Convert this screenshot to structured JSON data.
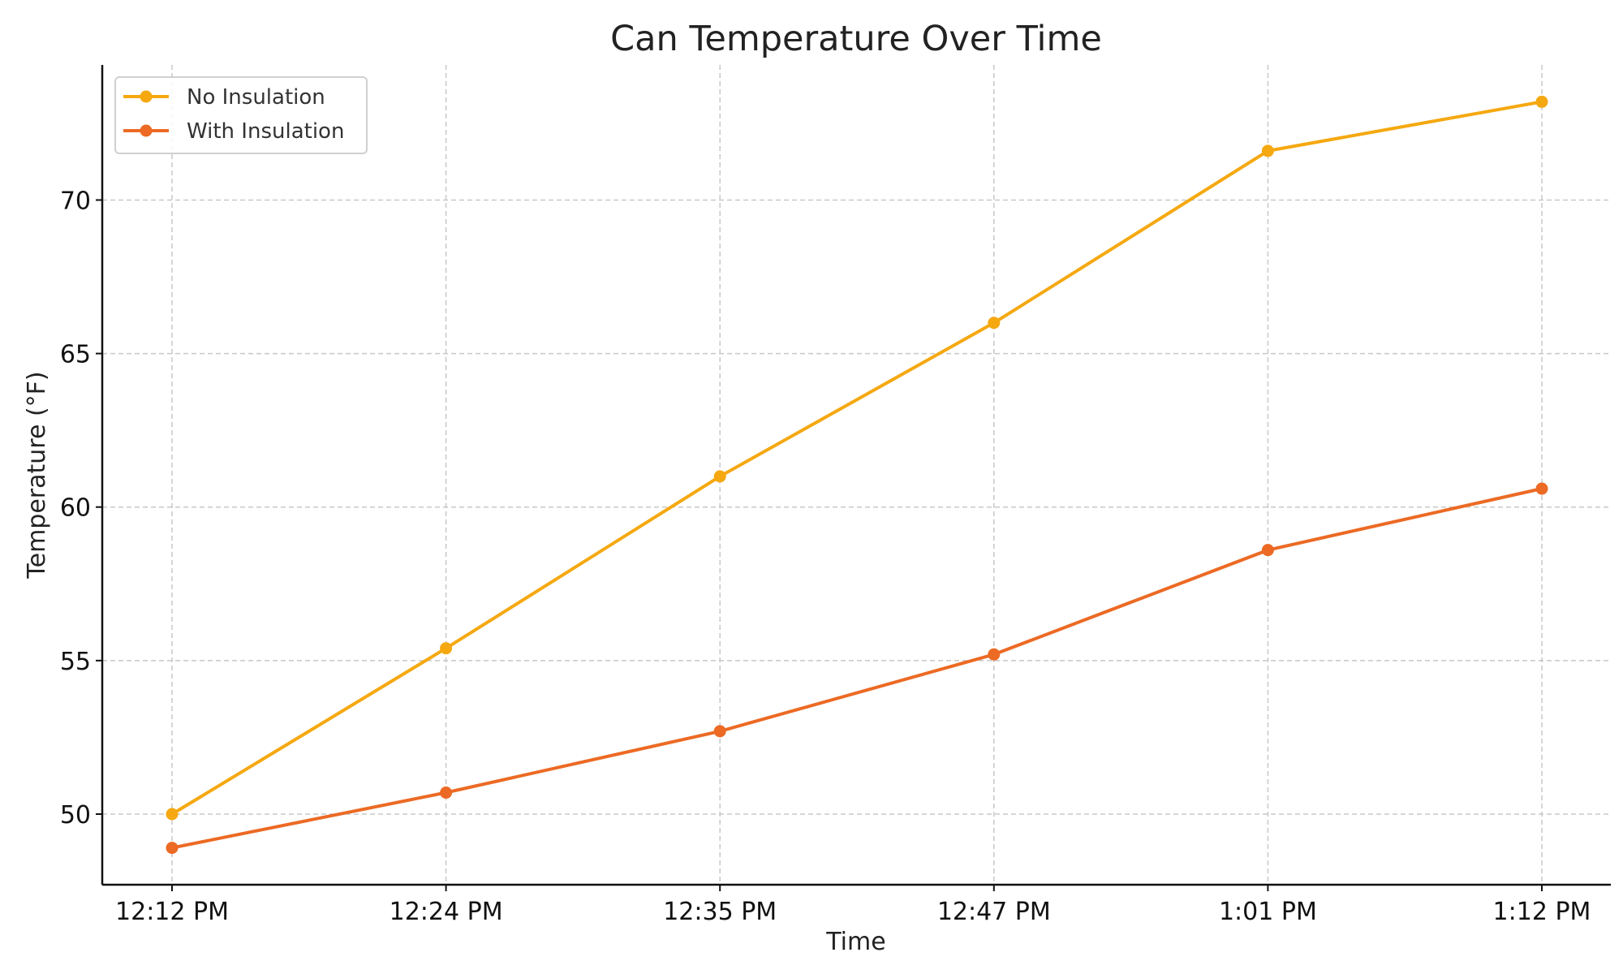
{
  "chart_data": {
    "type": "line",
    "title": "Can Temperature Over Time",
    "xlabel": "Time",
    "ylabel": "Temperature (°F)",
    "categories": [
      "12:12 PM",
      "12:24 PM",
      "12:35 PM",
      "12:47 PM",
      "1:01 PM",
      "1:12 PM"
    ],
    "yticks": [
      50,
      55,
      60,
      65,
      70
    ],
    "ylim": [
      47.7,
      74.4
    ],
    "grid": true,
    "legend_position": "top-left",
    "series": [
      {
        "name": "No Insulation",
        "color": "#F5A810",
        "values": [
          50.0,
          55.4,
          61.0,
          66.0,
          71.6,
          73.2
        ]
      },
      {
        "name": "With Insulation",
        "color": "#EC6A24",
        "values": [
          48.9,
          50.7,
          52.7,
          55.2,
          58.6,
          60.6
        ]
      }
    ]
  }
}
